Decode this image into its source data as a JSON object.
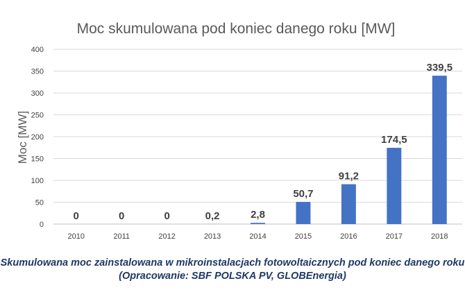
{
  "chart_data": {
    "type": "bar",
    "title": "Moc skumulowana pod koniec danego roku [MW]",
    "xlabel": "",
    "ylabel": "Moc [MW]",
    "categories": [
      "2010",
      "2011",
      "2012",
      "2013",
      "2014",
      "2015",
      "2016",
      "2017",
      "2018"
    ],
    "values": [
      0,
      0,
      0,
      0.2,
      2.8,
      50.7,
      91.2,
      174.5,
      339.5
    ],
    "data_labels": [
      "0",
      "0",
      "0",
      "0,2",
      "2,8",
      "50,7",
      "91,2",
      "174,5",
      "339,5"
    ],
    "ylim": [
      0,
      400
    ],
    "yticks": [
      0,
      50,
      100,
      150,
      200,
      250,
      300,
      350,
      400
    ],
    "grid": true,
    "legend": "none",
    "bar_color": "#4472c4"
  },
  "caption": "Skumulowana moc zainstalowana w mikroinstalacjach fotowoltaicznych pod koniec danego roku (Opracowanie: SBF POLSKA PV, GLOBEnergia)"
}
